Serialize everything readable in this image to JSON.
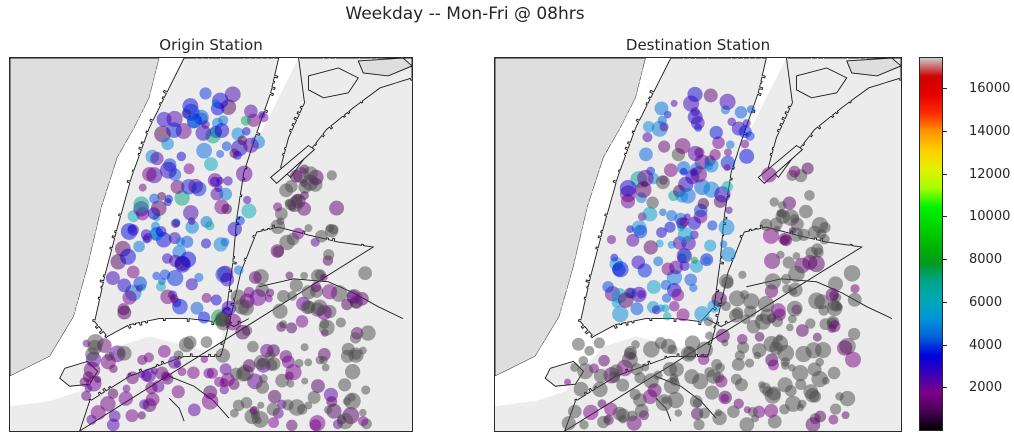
{
  "figure": {
    "title": "Weekday -- Mon-Fri @ 08hrs"
  },
  "panels": [
    {
      "id": "left",
      "title": "Origin Station"
    },
    {
      "id": "right",
      "title": "Destination Station"
    }
  ],
  "colorbar": {
    "min": 0,
    "max": 17500,
    "ticks": [
      {
        "value": 2000,
        "label": "2000"
      },
      {
        "value": 4000,
        "label": "4000"
      },
      {
        "value": 6000,
        "label": "6000"
      },
      {
        "value": 8000,
        "label": "8000"
      },
      {
        "value": 10000,
        "label": "10000"
      },
      {
        "value": 12000,
        "label": "12000"
      },
      {
        "value": 14000,
        "label": "14000"
      },
      {
        "value": 16000,
        "label": "16000"
      }
    ],
    "colormap": "nipy_spectral"
  },
  "colors": {
    "land": "#ececec",
    "west_land": "#dedede",
    "water": "#ffffff",
    "coastline": "#1a1a1a"
  }
}
